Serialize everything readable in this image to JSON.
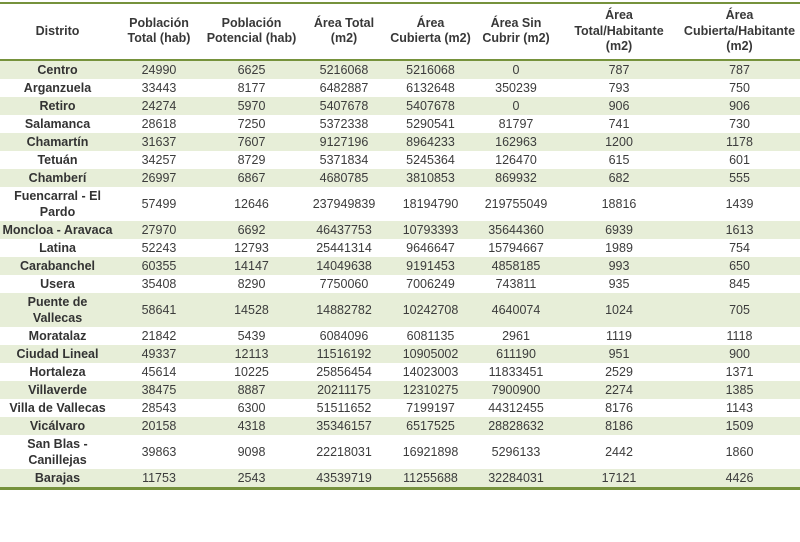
{
  "colors": {
    "accent_border": "#76923c",
    "band_row": "#e7eed8",
    "text": "#3c3c3c"
  },
  "table": {
    "columns": [
      "Distrito",
      "Población Total (hab)",
      "Población Potencial (hab)",
      "Área Total (m2)",
      "Área Cubierta (m2)",
      "Área Sin Cubrir (m2)",
      "Área Total/Habitante (m2)",
      "Área Cubierta/Habitante (m2)"
    ],
    "rows": [
      {
        "district": "Centro",
        "values": [
          "24990",
          "6625",
          "5216068",
          "5216068",
          "0",
          "787",
          "787"
        ]
      },
      {
        "district": "Arganzuela",
        "values": [
          "33443",
          "8177",
          "6482887",
          "6132648",
          "350239",
          "793",
          "750"
        ]
      },
      {
        "district": "Retiro",
        "values": [
          "24274",
          "5970",
          "5407678",
          "5407678",
          "0",
          "906",
          "906"
        ]
      },
      {
        "district": "Salamanca",
        "values": [
          "28618",
          "7250",
          "5372338",
          "5290541",
          "81797",
          "741",
          "730"
        ]
      },
      {
        "district": "Chamartín",
        "values": [
          "31637",
          "7607",
          "9127196",
          "8964233",
          "162963",
          "1200",
          "1178"
        ]
      },
      {
        "district": "Tetuán",
        "values": [
          "34257",
          "8729",
          "5371834",
          "5245364",
          "126470",
          "615",
          "601"
        ]
      },
      {
        "district": "Chamberí",
        "values": [
          "26997",
          "6867",
          "4680785",
          "3810853",
          "869932",
          "682",
          "555"
        ]
      },
      {
        "district": "Fuencarral - El Pardo",
        "values": [
          "57499",
          "12646",
          "237949839",
          "18194790",
          "219755049",
          "18816",
          "1439"
        ]
      },
      {
        "district": "Moncloa - Aravaca",
        "values": [
          "27970",
          "6692",
          "46437753",
          "10793393",
          "35644360",
          "6939",
          "1613"
        ]
      },
      {
        "district": "Latina",
        "values": [
          "52243",
          "12793",
          "25441314",
          "9646647",
          "15794667",
          "1989",
          "754"
        ]
      },
      {
        "district": "Carabanchel",
        "values": [
          "60355",
          "14147",
          "14049638",
          "9191453",
          "4858185",
          "993",
          "650"
        ]
      },
      {
        "district": "Usera",
        "values": [
          "35408",
          "8290",
          "7750060",
          "7006249",
          "743811",
          "935",
          "845"
        ]
      },
      {
        "district": "Puente de Vallecas",
        "values": [
          "58641",
          "14528",
          "14882782",
          "10242708",
          "4640074",
          "1024",
          "705"
        ]
      },
      {
        "district": "Moratalaz",
        "values": [
          "21842",
          "5439",
          "6084096",
          "6081135",
          "2961",
          "1119",
          "1118"
        ]
      },
      {
        "district": "Ciudad Lineal",
        "values": [
          "49337",
          "12113",
          "11516192",
          "10905002",
          "611190",
          "951",
          "900"
        ]
      },
      {
        "district": "Hortaleza",
        "values": [
          "45614",
          "10225",
          "25856454",
          "14023003",
          "11833451",
          "2529",
          "1371"
        ]
      },
      {
        "district": "Villaverde",
        "values": [
          "38475",
          "8887",
          "20211175",
          "12310275",
          "7900900",
          "2274",
          "1385"
        ]
      },
      {
        "district": "Villa de Vallecas",
        "values": [
          "28543",
          "6300",
          "51511652",
          "7199197",
          "44312455",
          "8176",
          "1143"
        ]
      },
      {
        "district": "Vicálvaro",
        "values": [
          "20158",
          "4318",
          "35346157",
          "6517525",
          "28828632",
          "8186",
          "1509"
        ]
      },
      {
        "district": "San Blas - Canillejas",
        "values": [
          "39863",
          "9098",
          "22218031",
          "16921898",
          "5296133",
          "2442",
          "1860"
        ]
      },
      {
        "district": "Barajas",
        "values": [
          "11753",
          "2543",
          "43539719",
          "11255688",
          "32284031",
          "17121",
          "4426"
        ]
      }
    ]
  },
  "chart_data": {
    "type": "table",
    "title": "",
    "columns": [
      "Distrito",
      "Población Total (hab)",
      "Población Potencial (hab)",
      "Área Total (m2)",
      "Área Cubierta (m2)",
      "Área Sin Cubrir (m2)",
      "Área Total/Habitante (m2)",
      "Área Cubierta/Habitante (m2)"
    ],
    "rows": [
      [
        "Centro",
        24990,
        6625,
        5216068,
        5216068,
        0,
        787,
        787
      ],
      [
        "Arganzuela",
        33443,
        8177,
        6482887,
        6132648,
        350239,
        793,
        750
      ],
      [
        "Retiro",
        24274,
        5970,
        5407678,
        5407678,
        0,
        906,
        906
      ],
      [
        "Salamanca",
        28618,
        7250,
        5372338,
        5290541,
        81797,
        741,
        730
      ],
      [
        "Chamartín",
        31637,
        7607,
        9127196,
        8964233,
        162963,
        1200,
        1178
      ],
      [
        "Tetuán",
        34257,
        8729,
        5371834,
        5245364,
        126470,
        615,
        601
      ],
      [
        "Chamberí",
        26997,
        6867,
        4680785,
        3810853,
        869932,
        682,
        555
      ],
      [
        "Fuencarral - El Pardo",
        57499,
        12646,
        237949839,
        18194790,
        219755049,
        18816,
        1439
      ],
      [
        "Moncloa - Aravaca",
        27970,
        6692,
        46437753,
        10793393,
        35644360,
        6939,
        1613
      ],
      [
        "Latina",
        52243,
        12793,
        25441314,
        9646647,
        15794667,
        1989,
        754
      ],
      [
        "Carabanchel",
        60355,
        14147,
        14049638,
        9191453,
        4858185,
        993,
        650
      ],
      [
        "Usera",
        35408,
        8290,
        7750060,
        7006249,
        743811,
        935,
        845
      ],
      [
        "Puente de Vallecas",
        58641,
        14528,
        14882782,
        10242708,
        4640074,
        1024,
        705
      ],
      [
        "Moratalaz",
        21842,
        5439,
        6084096,
        6081135,
        2961,
        1119,
        1118
      ],
      [
        "Ciudad Lineal",
        49337,
        12113,
        11516192,
        10905002,
        611190,
        951,
        900
      ],
      [
        "Hortaleza",
        45614,
        10225,
        25856454,
        14023003,
        11833451,
        2529,
        1371
      ],
      [
        "Villaverde",
        38475,
        8887,
        20211175,
        12310275,
        7900900,
        2274,
        1385
      ],
      [
        "Villa de Vallecas",
        28543,
        6300,
        51511652,
        7199197,
        44312455,
        8176,
        1143
      ],
      [
        "Vicálvaro",
        20158,
        4318,
        35346157,
        6517525,
        28828632,
        8186,
        1509
      ],
      [
        "San Blas - Canillejas",
        39863,
        9098,
        22218031,
        16921898,
        5296133,
        2442,
        1860
      ],
      [
        "Barajas",
        11753,
        2543,
        43539719,
        11255688,
        32284031,
        17121,
        4426
      ]
    ],
    "layout_hints": {
      "banded_rows": true,
      "band_color": "#e7eed8",
      "border_color": "#76923c",
      "header_bold": true,
      "first_column_bold": true,
      "cell_alignment": "center"
    }
  }
}
